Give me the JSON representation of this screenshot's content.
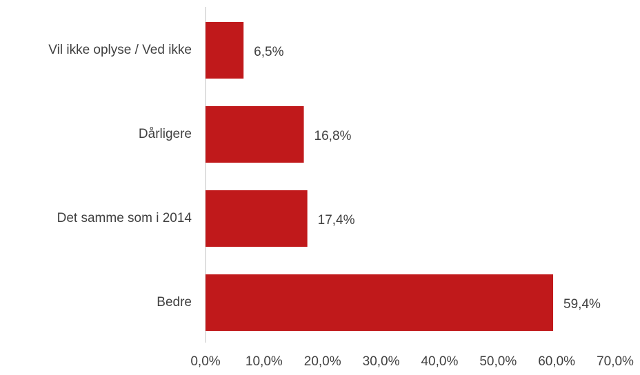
{
  "chart_data": {
    "type": "hbar",
    "categories": [
      "Vil ikke oplyse / Ved ikke",
      "Dårligere",
      "Det samme som i 2014",
      "Bedre"
    ],
    "values": [
      6.5,
      16.8,
      17.4,
      59.4
    ],
    "value_labels": [
      "6,5%",
      "16,8%",
      "17,4%",
      "59,4%"
    ],
    "color": "#c0191b",
    "xlim": [
      0,
      70
    ],
    "xticks": [
      {
        "value": 0,
        "label": "0,0%"
      },
      {
        "value": 10,
        "label": "10,0%"
      },
      {
        "value": 20,
        "label": "20,0%"
      },
      {
        "value": 30,
        "label": "30,0%"
      },
      {
        "value": 40,
        "label": "40,0%"
      },
      {
        "value": 50,
        "label": "50,0%"
      },
      {
        "value": 60,
        "label": "60,0%"
      },
      {
        "value": 70,
        "label": "70,0%"
      }
    ],
    "grid": false
  }
}
